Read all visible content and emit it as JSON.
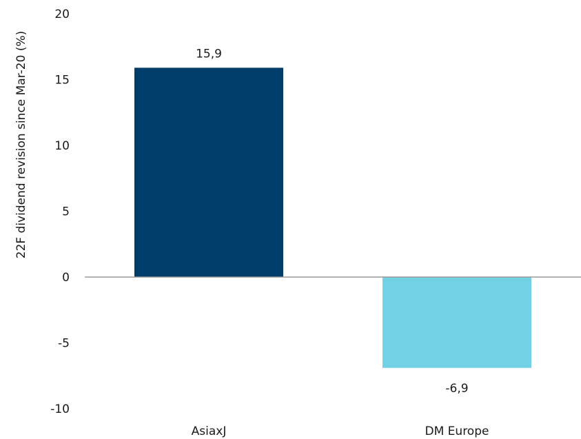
{
  "chart_data": {
    "type": "bar",
    "title": "",
    "xlabel": "",
    "ylabel": "22F dividend revision since Mar-20 (%)",
    "ylim": [
      -10,
      20
    ],
    "yticks": [
      "20",
      "15",
      "10",
      "5",
      "0",
      "-5",
      "-10"
    ],
    "categories": [
      "AsiaxJ",
      "DM Europe"
    ],
    "values": [
      15.9,
      -6.9
    ],
    "value_labels": [
      "15,9",
      "-6,9"
    ],
    "colors": [
      "#003d6a",
      "#72d1e5"
    ],
    "zero_line_color": "#9a9a9a",
    "grid": false,
    "legend": "none"
  }
}
